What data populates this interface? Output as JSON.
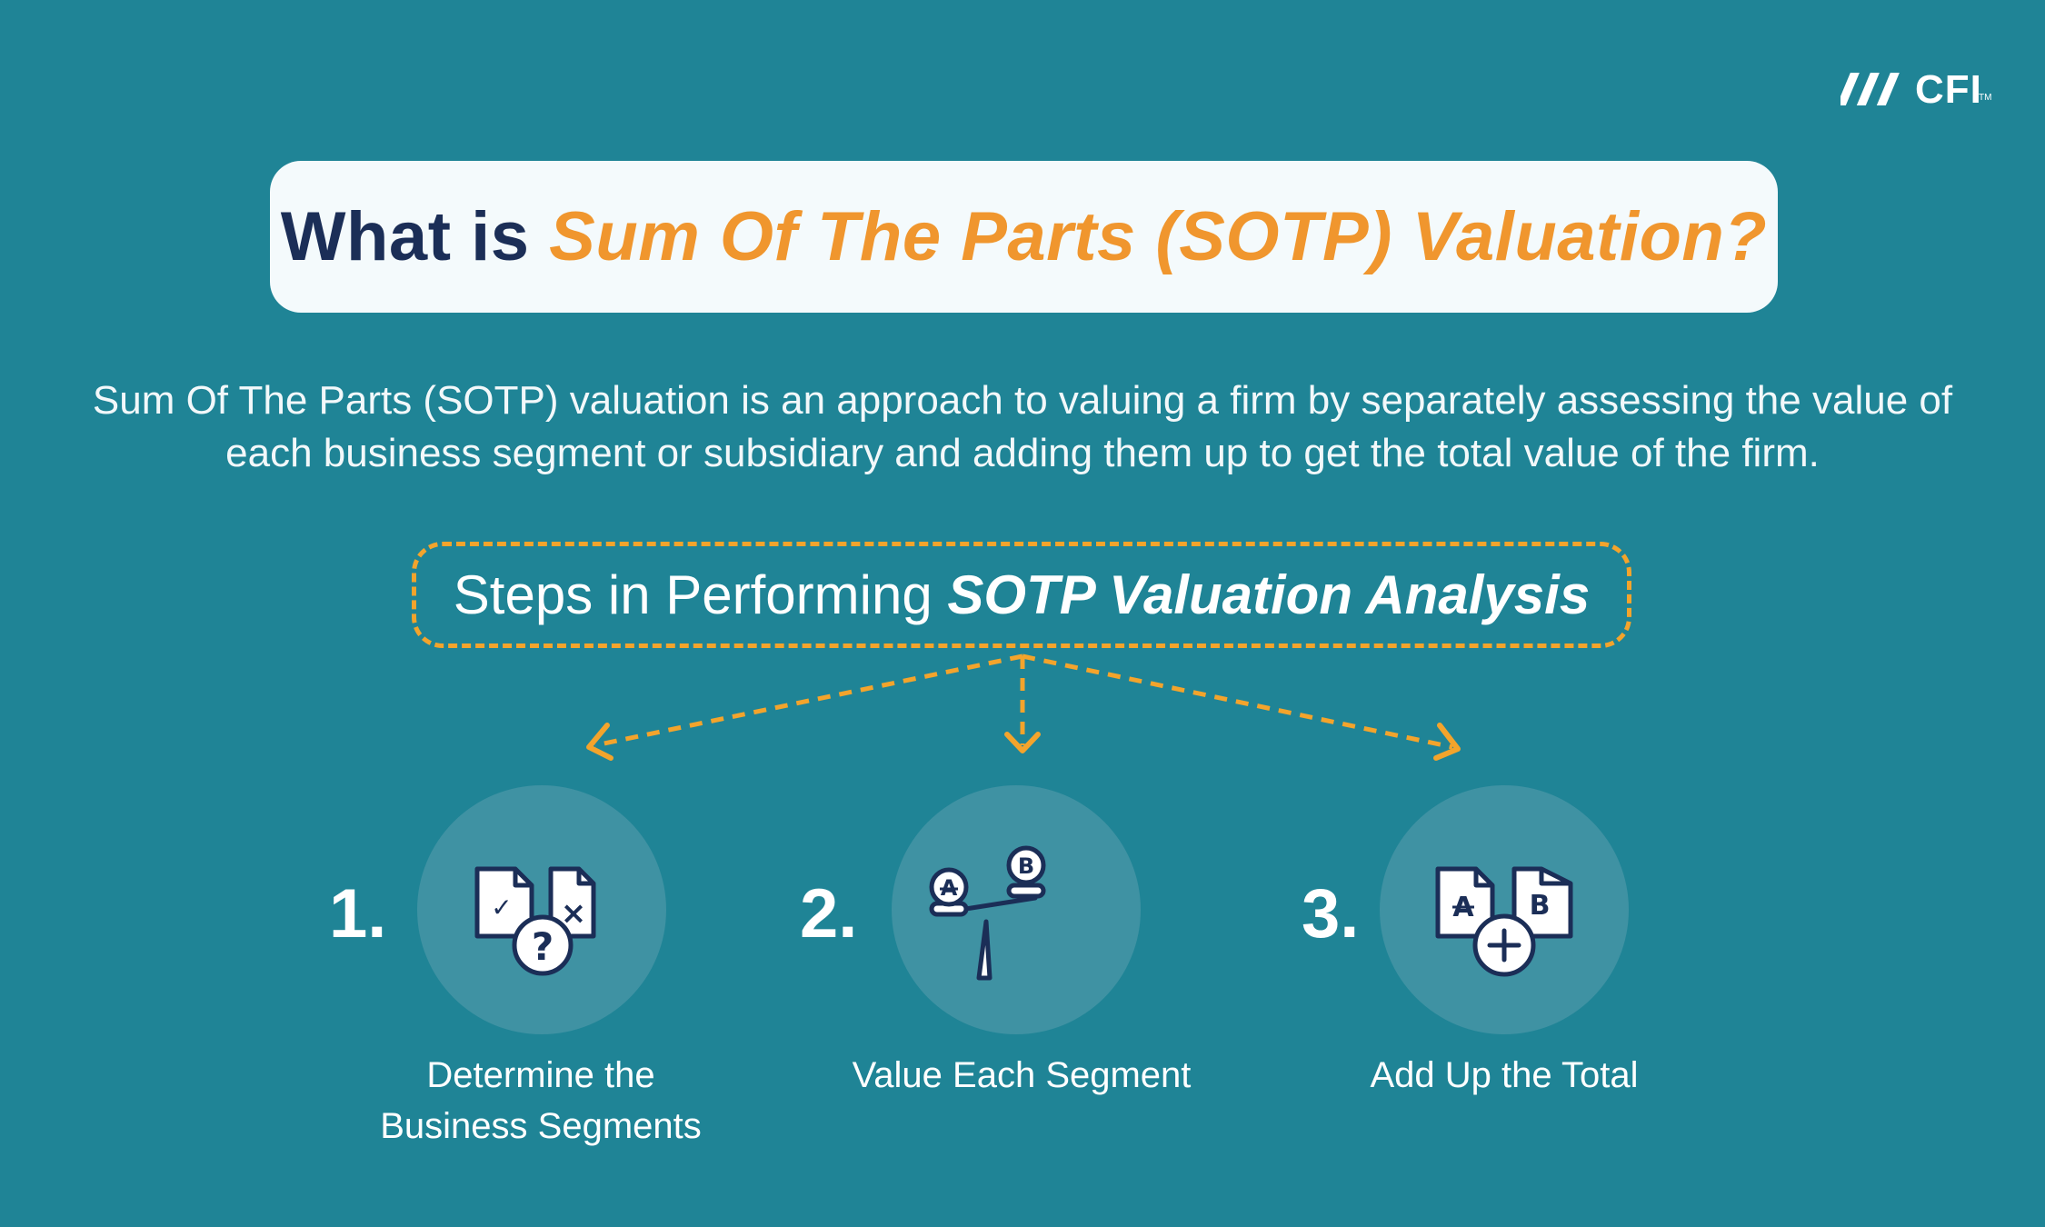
{
  "brand": {
    "logo_text": "CFI",
    "trademark": "TM"
  },
  "title": {
    "prefix": "What is ",
    "highlight": "Sum Of The Parts (SOTP) Valuation?"
  },
  "intro": {
    "text": "Sum Of The Parts (SOTP) valuation is an approach to valuing a firm by separately assessing the value of each business segment or subsidiary and adding them up to get the total value of the firm."
  },
  "steps_heading": {
    "prefix": "Steps in Performing ",
    "highlight": "SOTP Valuation Analysis"
  },
  "steps": [
    {
      "number": "1.",
      "label_line1": "Determine the",
      "label_line2": "Business Segments",
      "icon": "documents-question-icon"
    },
    {
      "number": "2.",
      "label_line1": "Value Each Segment",
      "label_line2": "",
      "icon": "balance-scale-icon"
    },
    {
      "number": "3.",
      "label_line1": "Add Up the Total",
      "label_line2": "",
      "icon": "documents-plus-icon"
    }
  ],
  "icon_glyphs": {
    "check": "✓",
    "cross": "×",
    "question": "?",
    "letter_a": "A",
    "letter_b": "B"
  },
  "colors": {
    "background": "#1f8496",
    "title_dark": "#1b2e57",
    "accent_orange": "#f0962e",
    "dashed_orange": "#f3a42c",
    "circle": "#3f92a3",
    "icon_navy": "#1b2e57"
  }
}
